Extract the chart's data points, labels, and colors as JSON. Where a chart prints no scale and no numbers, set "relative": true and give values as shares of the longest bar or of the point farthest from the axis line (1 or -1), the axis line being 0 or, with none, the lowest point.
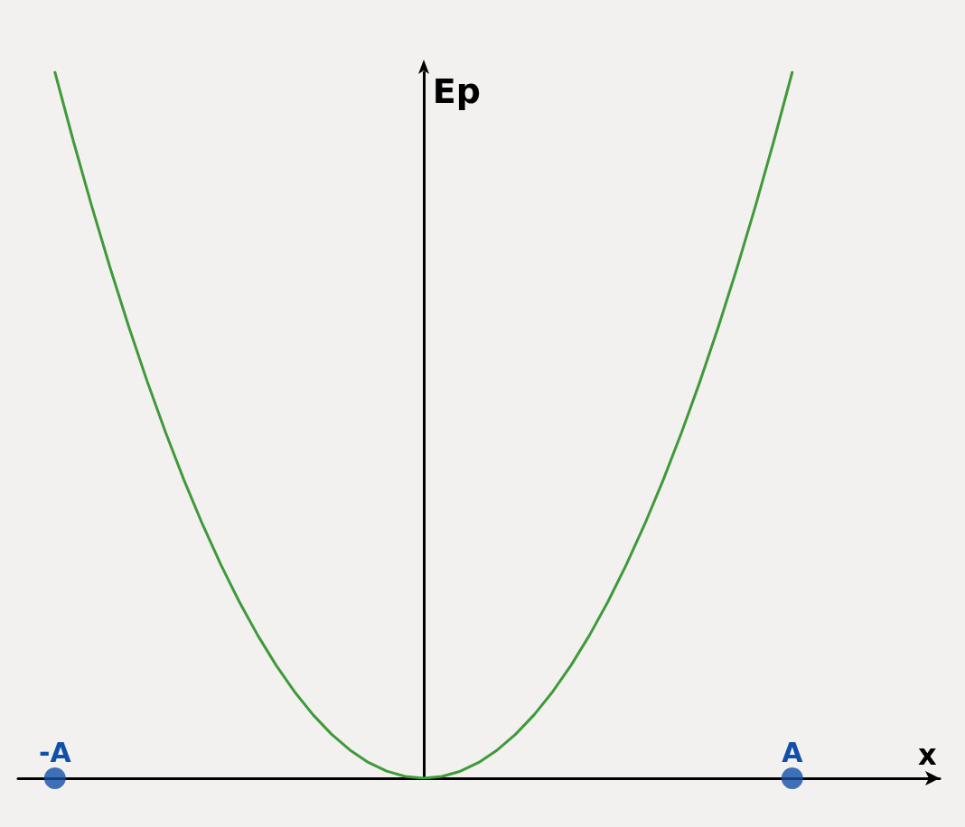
{
  "chart_data": {
    "type": "line",
    "xlabel": "x",
    "ylabel": "Ep",
    "relative": true,
    "line_style": "solid",
    "categories": [
      null,
      null,
      "-A",
      null,
      null,
      null,
      null,
      null,
      null,
      null,
      null,
      null,
      null,
      null,
      null,
      null,
      null,
      null,
      null,
      null,
      null,
      null,
      null,
      null,
      null,
      null,
      null,
      null,
      null,
      null,
      null,
      null,
      null,
      null,
      null,
      null,
      null,
      null,
      null,
      null,
      null,
      null,
      "A",
      null,
      null,
      null,
      null,
      null,
      null,
      null,
      null
    ],
    "series": [
      {
        "color": "#3f9a3a",
        "marker": "none",
        "values": [
          null,
          null,
          1,
          0.9025,
          0.81,
          0.7225,
          0.64,
          0.5625,
          0.49,
          0.4225,
          0.36,
          0.3025,
          0.25,
          0.2025,
          0.16,
          0.1225,
          0.09,
          0.0625,
          0.04,
          0.0225,
          0.01,
          0.0025,
          0,
          0.0025,
          0.01,
          0.0225,
          0.04,
          0.0625,
          0.09,
          0.1225,
          0.16,
          0.2025,
          0.25,
          0.3025,
          0.36,
          0.4225,
          0.49,
          0.5625,
          0.64,
          0.7225,
          0.81,
          0.9025,
          1,
          null,
          null,
          null,
          null,
          null,
          null,
          null,
          null
        ]
      },
      {
        "type": "scatter",
        "color": "#1150a8",
        "marker": "circle",
        "x": [
          "-A",
          "A"
        ],
        "values": [
          0,
          0
        ]
      }
    ]
  }
}
